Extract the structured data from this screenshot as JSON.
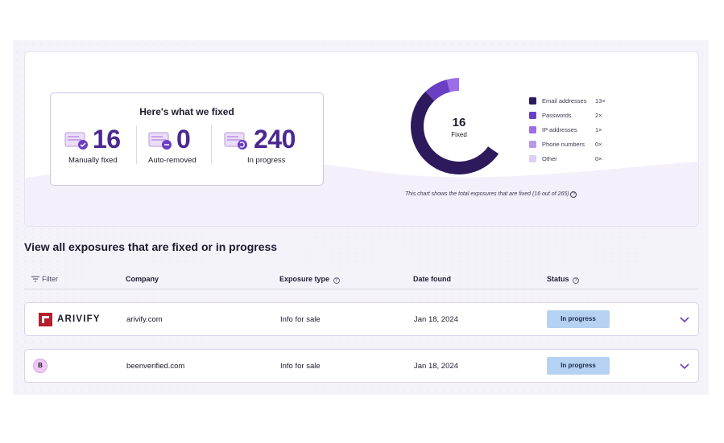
{
  "summary": {
    "title": "Here's what we fixed",
    "stats": [
      {
        "value": "16",
        "label": "Manually fixed",
        "icon": "manual-fix-icon"
      },
      {
        "value": "0",
        "label": "Auto-removed",
        "icon": "auto-remove-icon"
      },
      {
        "value": "240",
        "label": "In progress",
        "icon": "in-progress-icon"
      }
    ]
  },
  "chart_data": {
    "type": "pie",
    "center_value": "16",
    "center_label": "Fixed",
    "categories": [
      "Email addresses",
      "Passwords",
      "IP addresses",
      "Phone numbers",
      "Other"
    ],
    "values": [
      13,
      2,
      1,
      0,
      0
    ],
    "value_labels": [
      "13×",
      "2×",
      "1×",
      "0×",
      "0×"
    ],
    "colors": [
      "#2d1a5c",
      "#6a3fc4",
      "#9c6ee8",
      "#b998e8",
      "#ddd0f3"
    ],
    "note": "This chart shows the total exposures that are fixed (16 out of 265)"
  },
  "exposures": {
    "title": "View all exposures that are fixed or in progress",
    "columns": {
      "filter": "Filter",
      "company": "Company",
      "type": "Exposure type",
      "date": "Date found",
      "status": "Status"
    },
    "rows": [
      {
        "brand": "ARIVIFY",
        "company": "arivify.com",
        "type": "Info for sale",
        "date": "Jan 18, 2024",
        "status": "In progress"
      },
      {
        "avatar": "B",
        "company": "beenverified.com",
        "type": "Info for sale",
        "date": "Jan 18, 2024",
        "status": "In progress"
      }
    ]
  },
  "colors": {
    "accent": "#4b2990",
    "badge": "#b5d2f3",
    "border": "#d9d0ea"
  }
}
